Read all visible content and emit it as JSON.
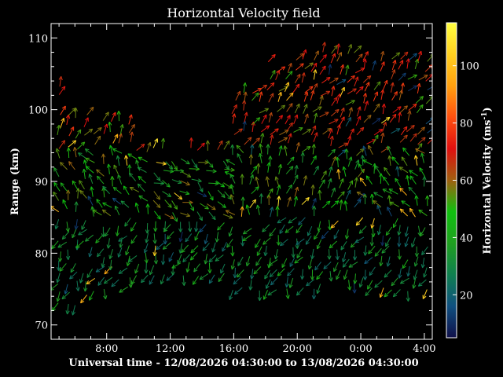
{
  "chart_data": {
    "type": "vector-field",
    "title": "Horizontal Velocity field",
    "xlabel": "Universal time - 12/08/2026 04:30:00 to 13/08/2026 04:30:00",
    "ylabel": "Range (km)",
    "x_tick_labels": [
      "8:00",
      "12:00",
      "16:00",
      "20:00",
      "0:00",
      "4:00"
    ],
    "x_tick_hours": [
      8,
      12,
      16,
      20,
      24,
      28
    ],
    "xlim_hours": [
      4.5,
      28.5
    ],
    "y_ticks": [
      70,
      80,
      90,
      100,
      110
    ],
    "ylim": [
      68,
      112
    ],
    "colorbar": {
      "label": "Horizontal Velocity (ms",
      "label_sup": "-1",
      "label_end": ")",
      "ticks": [
        20,
        40,
        60,
        80,
        100
      ],
      "range": [
        5,
        115
      ],
      "colors": [
        "#10104a",
        "#105080",
        "#108050",
        "#20a020",
        "#10c010",
        "#a06010",
        "#e01010",
        "#ff5010",
        "#ffa010",
        "#ffd020",
        "#ffff40"
      ]
    }
  }
}
